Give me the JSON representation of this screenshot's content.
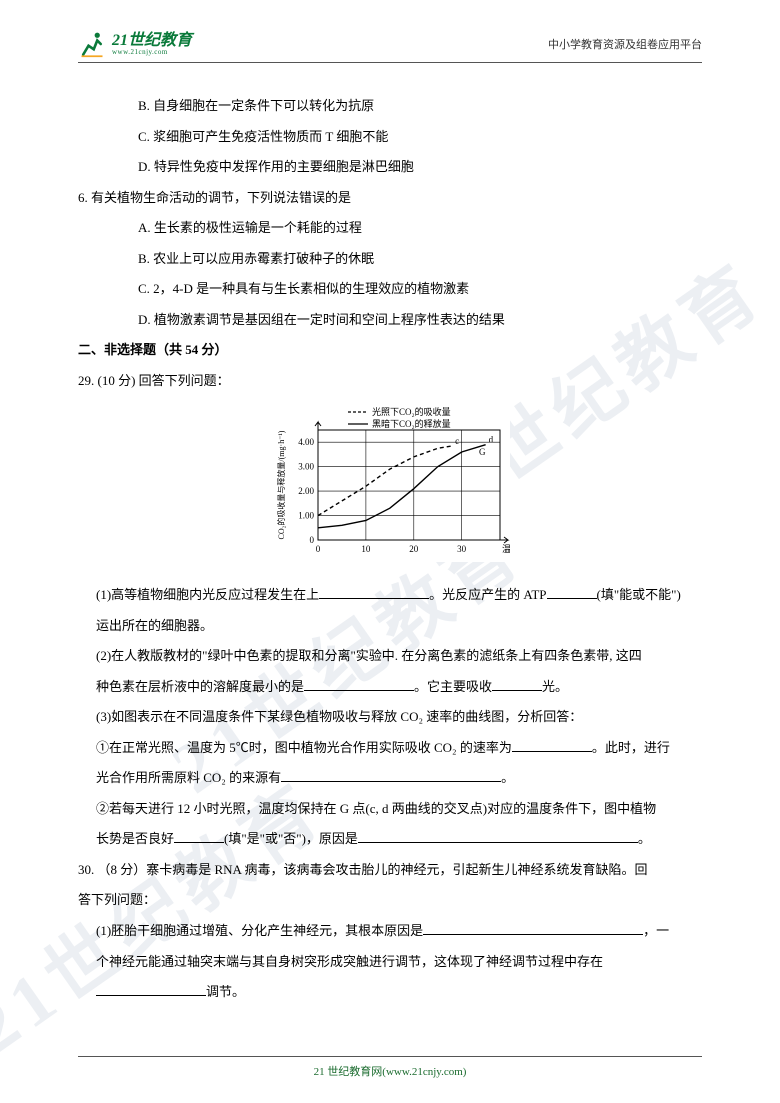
{
  "header": {
    "logo_main": "21世纪教育",
    "logo_sub": "www.21cnjy.com",
    "right": "中小学教育资源及组卷应用平台"
  },
  "watermark": "21世纪教育",
  "options": {
    "b": "B. 自身细胞在一定条件下可以转化为抗原",
    "c": "C. 浆细胞可产生免疫活性物质而 T 细胞不能",
    "d": "D. 特异性免疫中发挥作用的主要细胞是淋巴细胞"
  },
  "q6": {
    "stem": "6. 有关植物生命活动的调节，下列说法错误的是",
    "a": "A. 生长素的极性运输是一个耗能的过程",
    "b": "B. 农业上可以应用赤霉素打破种子的休眠",
    "c": "C.  2，4-D 是一种具有与生长素相似的生理效应的植物激素",
    "d": "D. 植物激素调节是基因组在一定时间和空间上程序性表达的结果"
  },
  "section2": "二、非选择题（共 54 分）",
  "q29": {
    "stem": "29. (10 分) 回答下列问题：",
    "p1_a": "(1)高等植物细胞内光反应过程发生在上",
    "p1_b": "。光反应产生的 ATP",
    "p1_c": "(填\"能或不能\")",
    "p1_d": "运出所在的细胞器。",
    "p2_a": "(2)在人教版教材的\"绿叶中色素的提取和分离\"实验中. 在分离色素的滤纸条上有四条色素带, 这四",
    "p2_b": "种色素在层析液中的溶解度最小的是",
    "p2_c": "。它主要吸收",
    "p2_d": "光。",
    "p3": "(3)如图表示在不同温度条件下某绿色植物吸收与释放 CO₂ 速率的曲线图，分析回答：",
    "p3_1a": "①在正常光照、温度为 5℃时，图中植物光合作用实际吸收 CO₂ 的速率为",
    "p3_1b": "。此时，进行",
    "p3_1c": "光合作用所需原料 CO₂ 的来源有",
    "p3_1d": "。",
    "p3_2a": "②若每天进行 12 小时光照，温度均保持在 G 点(c, d 两曲线的交叉点)对应的温度条件下，图中植物",
    "p3_2b": "长势是否良好",
    "p3_2c": "(填\"是\"或\"否\")，原因是",
    "p3_2d": "。"
  },
  "q30": {
    "stem_a": "30.   （8 分）寨卡病毒是 RNA 病毒，该病毒会攻击胎儿的神经元，引起新生儿神经系统发育缺陷。回",
    "stem_b": "答下列问题：",
    "p1_a": "(1)胚胎干细胞通过增殖、分化产生神经元，其根本原因是",
    "p1_b": "，一",
    "p1_c": "个神经元能通过轴突末端与其自身树突形成突触进行调节，这体现了神经调节过程中存在",
    "p1_d": "调节。"
  },
  "chart": {
    "type": "line",
    "legend1": "光照下CO₂的吸收量",
    "legend2": "黑暗下CO₂的释放量",
    "ylabel": "CO₂的吸收量与释放量/(mg·h⁻¹)",
    "xlabel": "温度/℃",
    "x_ticks": [
      0,
      10,
      20,
      30
    ],
    "y_ticks": [
      0,
      1.0,
      2.0,
      3.0,
      4.0
    ],
    "ylim": [
      0,
      4.5
    ],
    "xlim": [
      0,
      38
    ],
    "series_dashed": [
      [
        0,
        1.0
      ],
      [
        5,
        1.6
      ],
      [
        10,
        2.2
      ],
      [
        15,
        2.9
      ],
      [
        20,
        3.4
      ],
      [
        25,
        3.75
      ],
      [
        28,
        3.85
      ]
    ],
    "series_solid": [
      [
        0,
        0.5
      ],
      [
        5,
        0.6
      ],
      [
        10,
        0.8
      ],
      [
        15,
        1.3
      ],
      [
        20,
        2.1
      ],
      [
        25,
        3.0
      ],
      [
        30,
        3.6
      ],
      [
        35,
        3.9
      ]
    ],
    "point_c": [
      28,
      3.85
    ],
    "point_d": [
      35,
      3.9
    ],
    "point_G": [
      33,
      3.8
    ],
    "line_color": "#000000",
    "grid_color": "#000000",
    "background_color": "#ffffff",
    "font_size_axis": 9,
    "font_size_legend": 9
  },
  "footer": "21 世纪教育网(www.21cnjy.com)"
}
